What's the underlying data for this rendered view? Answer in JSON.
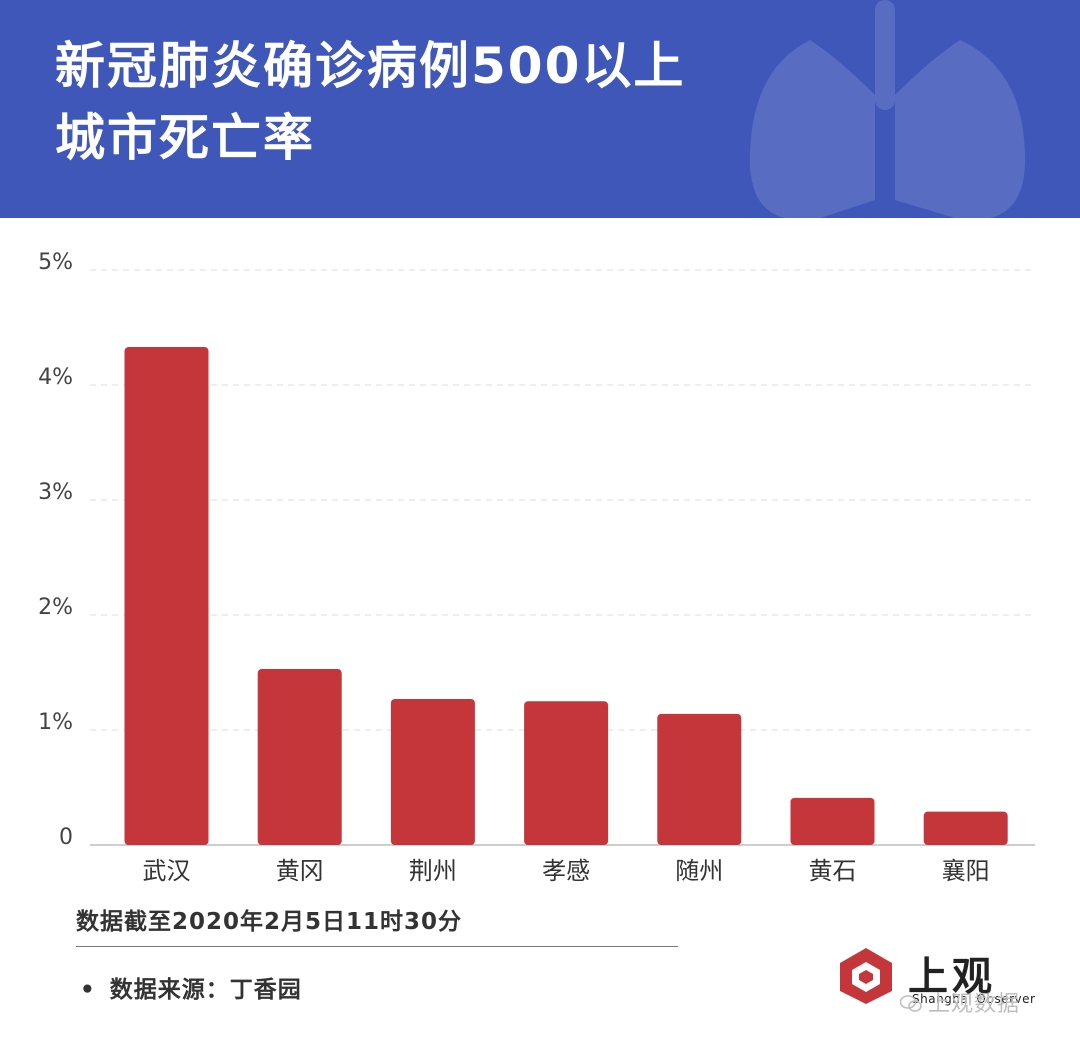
{
  "header": {
    "title_line1": "新冠肺炎确诊病例500以上",
    "title_line2": "城市死亡率",
    "background": "#3f57b8"
  },
  "chart_data": {
    "type": "bar",
    "categories": [
      "武汉",
      "黄冈",
      "荆州",
      "孝感",
      "随州",
      "黄石",
      "襄阳"
    ],
    "values": [
      4.33,
      1.53,
      1.27,
      1.25,
      1.14,
      0.41,
      0.29
    ],
    "ylim": [
      0,
      5
    ],
    "yticks": [
      0,
      1,
      2,
      3,
      4,
      5
    ],
    "ytick_labels": [
      "0",
      "1%",
      "2%",
      "3%",
      "4%",
      "5%"
    ],
    "grid": true,
    "bar_color": "#c4363a"
  },
  "footer": {
    "note": "数据截至2020年2月5日11时30分",
    "source_bullet": "•",
    "source": "数据来源：丁香园",
    "logo_cn": "上观",
    "logo_en": "Shanghai Observer",
    "watermark": "上观数据"
  }
}
